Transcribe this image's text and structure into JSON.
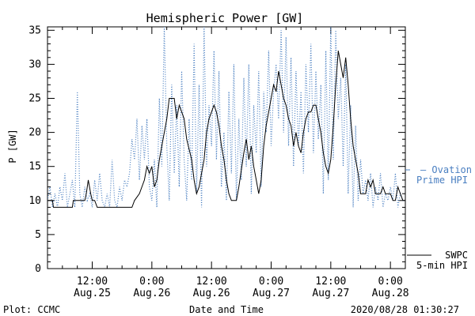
{
  "chart_data": {
    "type": "line",
    "title": "Hemispheric Power [GW]",
    "xlabel": "Date and Time",
    "ylabel": "P [GW]",
    "ylim": [
      0,
      35.5
    ],
    "yticks": [
      0,
      5,
      10,
      15,
      20,
      25,
      30,
      35
    ],
    "xlim_hours": [
      0,
      72
    ],
    "xticks": [
      {
        "hour": 9,
        "time": "12:00",
        "date": "Aug.25"
      },
      {
        "hour": 21,
        "time": "0:00",
        "date": "Aug.26"
      },
      {
        "hour": 33,
        "time": "12:00",
        "date": "Aug.26"
      },
      {
        "hour": 45,
        "time": "0:00",
        "date": "Aug.27"
      },
      {
        "hour": 57,
        "time": "12:00",
        "date": "Aug.27"
      },
      {
        "hour": 69,
        "time": "0:00",
        "date": "Aug.28"
      }
    ],
    "grid": false,
    "legend_position": "right",
    "series": [
      {
        "name": "SWPC 5-min HPI",
        "legend_lines": [
          "SWPC",
          "5-min HPI"
        ],
        "color": "#000000",
        "style": "solid",
        "points": [
          [
            0,
            10
          ],
          [
            1,
            10
          ],
          [
            1.2,
            9
          ],
          [
            5,
            9
          ],
          [
            5.2,
            10
          ],
          [
            7.5,
            10
          ],
          [
            7.8,
            11
          ],
          [
            8.2,
            13
          ],
          [
            8.7,
            11
          ],
          [
            9,
            10
          ],
          [
            9.5,
            10
          ],
          [
            10,
            9
          ],
          [
            17,
            9
          ],
          [
            17.5,
            10
          ],
          [
            18.5,
            11
          ],
          [
            19.5,
            13
          ],
          [
            20,
            15
          ],
          [
            20.5,
            14
          ],
          [
            21,
            15
          ],
          [
            21.5,
            12
          ],
          [
            22,
            13
          ],
          [
            22.5,
            16
          ],
          [
            23,
            18
          ],
          [
            24,
            22
          ],
          [
            24.5,
            25
          ],
          [
            25,
            25
          ],
          [
            25.5,
            25
          ],
          [
            26,
            22
          ],
          [
            26.5,
            24
          ],
          [
            27,
            23
          ],
          [
            27.5,
            22
          ],
          [
            28,
            19
          ],
          [
            29,
            16
          ],
          [
            29.5,
            13
          ],
          [
            30,
            11
          ],
          [
            30.5,
            12
          ],
          [
            31,
            14
          ],
          [
            31.5,
            16
          ],
          [
            32,
            20
          ],
          [
            32.5,
            22
          ],
          [
            33,
            23
          ],
          [
            33.5,
            24
          ],
          [
            34,
            23
          ],
          [
            34.5,
            21
          ],
          [
            35,
            18
          ],
          [
            35.5,
            16
          ],
          [
            36,
            13
          ],
          [
            36.5,
            11
          ],
          [
            37,
            10
          ],
          [
            38,
            10
          ],
          [
            38.5,
            12
          ],
          [
            39.5,
            17
          ],
          [
            40,
            19
          ],
          [
            40.5,
            16
          ],
          [
            41,
            18
          ],
          [
            41.5,
            15
          ],
          [
            42,
            13
          ],
          [
            42.5,
            11
          ],
          [
            43,
            13
          ],
          [
            43.5,
            18
          ],
          [
            44,
            21
          ],
          [
            44.5,
            23
          ],
          [
            45,
            25
          ],
          [
            45.5,
            27
          ],
          [
            46,
            26
          ],
          [
            46.5,
            29
          ],
          [
            47,
            27
          ],
          [
            47.5,
            25
          ],
          [
            48,
            24
          ],
          [
            48.5,
            22
          ],
          [
            49,
            21
          ],
          [
            49.5,
            18
          ],
          [
            50,
            20
          ],
          [
            50.5,
            18
          ],
          [
            51,
            17
          ],
          [
            51.5,
            20
          ],
          [
            52,
            22
          ],
          [
            52.5,
            23
          ],
          [
            53,
            23
          ],
          [
            53.5,
            24
          ],
          [
            54,
            24
          ],
          [
            54.5,
            22
          ],
          [
            55,
            20
          ],
          [
            55.5,
            17
          ],
          [
            56,
            15
          ],
          [
            56.5,
            14
          ],
          [
            57,
            16
          ],
          [
            57.5,
            21
          ],
          [
            58,
            27
          ],
          [
            58.5,
            32
          ],
          [
            59,
            30
          ],
          [
            59.5,
            28
          ],
          [
            60,
            31
          ],
          [
            60.5,
            27
          ],
          [
            61,
            22
          ],
          [
            61.5,
            18
          ],
          [
            62,
            16
          ],
          [
            62.5,
            14
          ],
          [
            63,
            11
          ],
          [
            64,
            11
          ],
          [
            64.5,
            13
          ],
          [
            65,
            12
          ],
          [
            65.5,
            13
          ],
          [
            66,
            11
          ],
          [
            67,
            11
          ],
          [
            67.5,
            12
          ],
          [
            68,
            11
          ],
          [
            69,
            11
          ],
          [
            69.5,
            10
          ],
          [
            70,
            10
          ],
          [
            70.5,
            12
          ],
          [
            71,
            11
          ],
          [
            71.5,
            10
          ],
          [
            72,
            10
          ]
        ]
      },
      {
        "name": "Ovation Prime HPI",
        "legend_lines": [
          "— Ovation",
          "Prime HPI"
        ],
        "color": "#4a7fc1",
        "style": "dotted",
        "points": [
          [
            0,
            10
          ],
          [
            0.5,
            12
          ],
          [
            1,
            9
          ],
          [
            1.5,
            11
          ],
          [
            2,
            9
          ],
          [
            2.5,
            12
          ],
          [
            3,
            10
          ],
          [
            3.5,
            14
          ],
          [
            4,
            9
          ],
          [
            4.5,
            11
          ],
          [
            5,
            13
          ],
          [
            5.5,
            9
          ],
          [
            6,
            26
          ],
          [
            6.5,
            11
          ],
          [
            7,
            9
          ],
          [
            7.5,
            12
          ],
          [
            8,
            10
          ],
          [
            8.5,
            11
          ],
          [
            9,
            9
          ],
          [
            9.5,
            13
          ],
          [
            10,
            10
          ],
          [
            10.5,
            14
          ],
          [
            11,
            10
          ],
          [
            11.5,
            9
          ],
          [
            12,
            11
          ],
          [
            12.5,
            9
          ],
          [
            13,
            16
          ],
          [
            13.5,
            10
          ],
          [
            14,
            9
          ],
          [
            14.5,
            12
          ],
          [
            15,
            10
          ],
          [
            15.5,
            13
          ],
          [
            16,
            12
          ],
          [
            16.5,
            14
          ],
          [
            17,
            19
          ],
          [
            17.5,
            16
          ],
          [
            18,
            22
          ],
          [
            18.5,
            13
          ],
          [
            19,
            21
          ],
          [
            19.5,
            16
          ],
          [
            20,
            22
          ],
          [
            20.5,
            12
          ],
          [
            21,
            10
          ],
          [
            21.5,
            16
          ],
          [
            22,
            9
          ],
          [
            22.5,
            25
          ],
          [
            23,
            15
          ],
          [
            23.5,
            36
          ],
          [
            24,
            18
          ],
          [
            24.5,
            10
          ],
          [
            25,
            27
          ],
          [
            25.5,
            14
          ],
          [
            26,
            24
          ],
          [
            26.5,
            12
          ],
          [
            27,
            29
          ],
          [
            27.5,
            16
          ],
          [
            28,
            10
          ],
          [
            28.5,
            22
          ],
          [
            29,
            13
          ],
          [
            29.5,
            33
          ],
          [
            30,
            11
          ],
          [
            30.5,
            27
          ],
          [
            31,
            9
          ],
          [
            31.5,
            36
          ],
          [
            32,
            15
          ],
          [
            32.5,
            24
          ],
          [
            33,
            18
          ],
          [
            33.5,
            32
          ],
          [
            34,
            16
          ],
          [
            34.5,
            29
          ],
          [
            35,
            12
          ],
          [
            35.5,
            20
          ],
          [
            36,
            10
          ],
          [
            36.5,
            26
          ],
          [
            37,
            14
          ],
          [
            37.5,
            30
          ],
          [
            38,
            10
          ],
          [
            38.5,
            22
          ],
          [
            39,
            13
          ],
          [
            39.5,
            28
          ],
          [
            40,
            15
          ],
          [
            40.5,
            30
          ],
          [
            41,
            11
          ],
          [
            41.5,
            24
          ],
          [
            42,
            17
          ],
          [
            42.5,
            29
          ],
          [
            43,
            12
          ],
          [
            43.5,
            26
          ],
          [
            44,
            20
          ],
          [
            44.5,
            32
          ],
          [
            45,
            18
          ],
          [
            45.5,
            26
          ],
          [
            46,
            30
          ],
          [
            46.5,
            22
          ],
          [
            47,
            35
          ],
          [
            47.5,
            20
          ],
          [
            48,
            34
          ],
          [
            48.5,
            18
          ],
          [
            49,
            31
          ],
          [
            49.5,
            15
          ],
          [
            50,
            29
          ],
          [
            50.5,
            18
          ],
          [
            51,
            26
          ],
          [
            51.5,
            14
          ],
          [
            52,
            30
          ],
          [
            52.5,
            20
          ],
          [
            53,
            33
          ],
          [
            53.5,
            17
          ],
          [
            54,
            29
          ],
          [
            54.5,
            19
          ],
          [
            55,
            27
          ],
          [
            55.5,
            11
          ],
          [
            56,
            32
          ],
          [
            56.5,
            13
          ],
          [
            57,
            36
          ],
          [
            57.5,
            16
          ],
          [
            58,
            35
          ],
          [
            58.5,
            22
          ],
          [
            59,
            28
          ],
          [
            59.5,
            15
          ],
          [
            60,
            30
          ],
          [
            60.5,
            11
          ],
          [
            61,
            24
          ],
          [
            61.5,
            9
          ],
          [
            62,
            21
          ],
          [
            62.5,
            10
          ],
          [
            63,
            16
          ],
          [
            63.5,
            11
          ],
          [
            64,
            13
          ],
          [
            64.5,
            10
          ],
          [
            65,
            14
          ],
          [
            65.5,
            9
          ],
          [
            66,
            12
          ],
          [
            66.5,
            10
          ],
          [
            67,
            14
          ],
          [
            67.5,
            9
          ],
          [
            68,
            11
          ],
          [
            68.5,
            10
          ],
          [
            69,
            12
          ],
          [
            69.5,
            10
          ],
          [
            70,
            14
          ],
          [
            70.5,
            9
          ],
          [
            71,
            11
          ],
          [
            71.5,
            10
          ],
          [
            72,
            10
          ]
        ]
      }
    ]
  },
  "footer": {
    "left": "Plot: CCMC",
    "center": "Date and Time",
    "right": "2020/08/28 01:30:27"
  }
}
